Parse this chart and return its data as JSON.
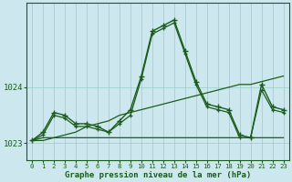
{
  "title": "Graphe pression niveau de la mer (hPa)",
  "background_color": "#cce8ee",
  "grid_color": "#99cccc",
  "line_color": "#1a5c1a",
  "xlim": [
    -0.5,
    23.5
  ],
  "ylim": [
    1022.7,
    1025.5
  ],
  "yticks": [
    1023,
    1024
  ],
  "xticks": [
    0,
    1,
    2,
    3,
    4,
    5,
    6,
    7,
    8,
    9,
    10,
    11,
    12,
    13,
    14,
    15,
    16,
    17,
    18,
    19,
    20,
    21,
    22,
    23
  ],
  "series_main": [
    1023.05,
    1023.2,
    1023.55,
    1023.5,
    1023.35,
    1023.35,
    1023.3,
    1023.2,
    1023.4,
    1023.6,
    1024.2,
    1025.0,
    1025.1,
    1025.2,
    1024.65,
    1024.1,
    1023.7,
    1023.65,
    1023.6,
    1023.15,
    1023.1,
    1024.05,
    1023.65,
    1023.6
  ],
  "series_flat": [
    1023.05,
    1023.1,
    1023.1,
    1023.1,
    1023.1,
    1023.1,
    1023.1,
    1023.1,
    1023.1,
    1023.1,
    1023.1,
    1023.1,
    1023.1,
    1023.1,
    1023.1,
    1023.1,
    1023.1,
    1023.1,
    1023.1,
    1023.1,
    1023.1,
    1023.1,
    1023.1,
    1023.1
  ],
  "series_rise": [
    1023.05,
    1023.05,
    1023.1,
    1023.15,
    1023.2,
    1023.3,
    1023.35,
    1023.4,
    1023.5,
    1023.55,
    1023.6,
    1023.65,
    1023.7,
    1023.75,
    1023.8,
    1023.85,
    1023.9,
    1023.95,
    1024.0,
    1024.05,
    1024.05,
    1024.1,
    1024.15,
    1024.2
  ],
  "series_second": [
    1023.05,
    1023.15,
    1023.5,
    1023.45,
    1023.3,
    1023.3,
    1023.25,
    1023.2,
    1023.35,
    1023.5,
    1024.15,
    1024.95,
    1025.05,
    1025.15,
    1024.6,
    1024.05,
    1023.65,
    1023.6,
    1023.55,
    1023.1,
    1023.1,
    1023.95,
    1023.6,
    1023.55
  ]
}
